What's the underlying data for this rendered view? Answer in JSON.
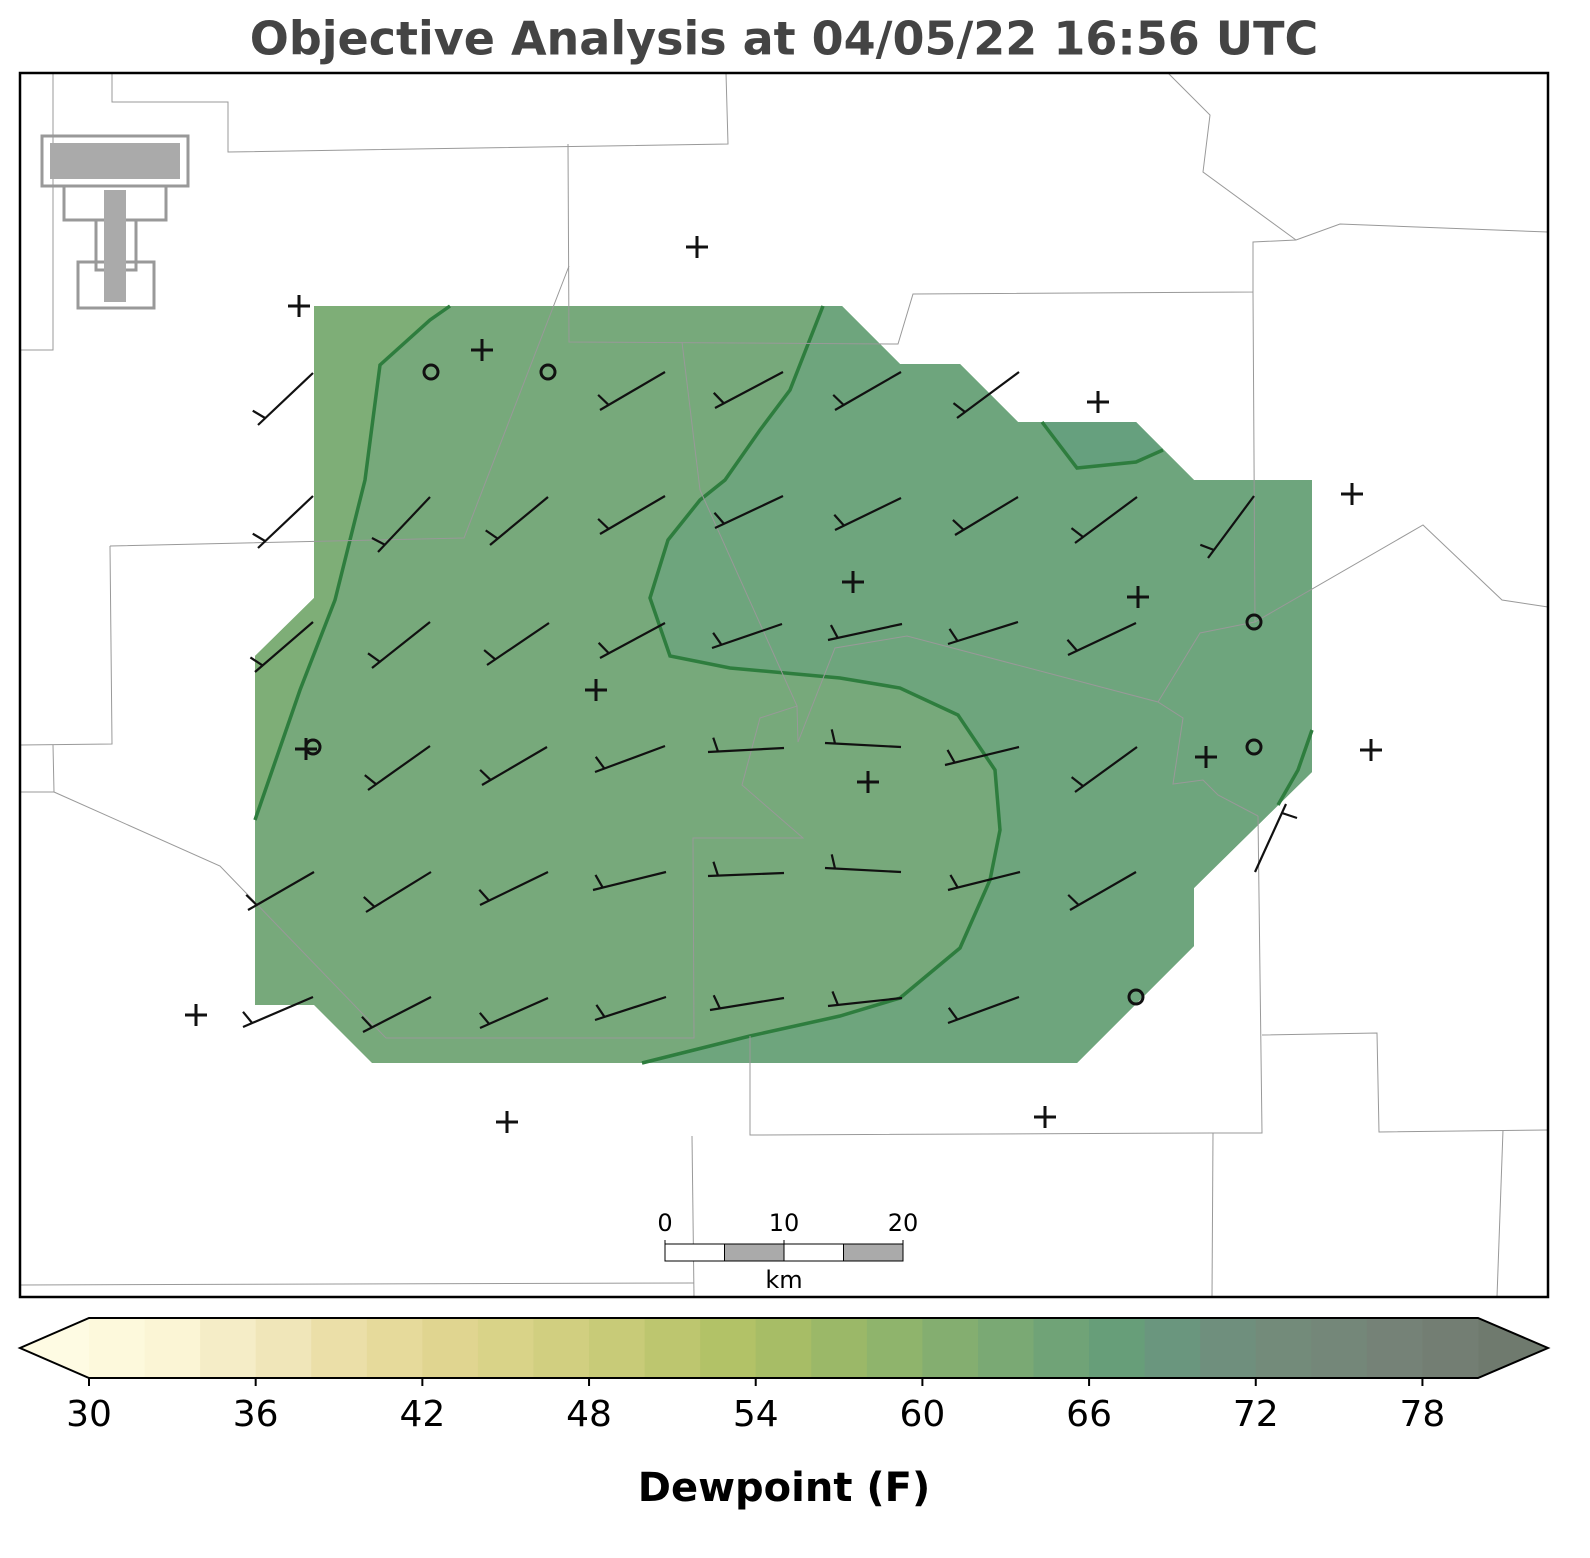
{
  "title": "Objective Analysis at 04/05/22 16:56 UTC",
  "scale_bar": {
    "ticks": [
      0,
      10,
      20
    ],
    "lim": [
      0,
      20
    ],
    "unit": "km"
  },
  "colorbar": {
    "label": "Dewpoint (F)",
    "lim": [
      30,
      80
    ],
    "ticks": [
      30,
      36,
      42,
      48,
      54,
      60,
      66,
      72,
      78
    ],
    "colors": [
      "#fdf9dc",
      "#fbf5d5",
      "#f5edc7",
      "#f0e6b9",
      "#ebdfa8",
      "#e6da9b",
      "#e0d590",
      "#d9d388",
      "#d1cf80",
      "#c8cb78",
      "#bdc66f",
      "#b2c267",
      "#a7bd66",
      "#9bb868",
      "#8fb46c",
      "#84ae70",
      "#7aa974",
      "#70a377",
      "#679e79",
      "#6a967e",
      "#6f8f7d",
      "#738b7a",
      "#748779",
      "#758277",
      "#737e73"
    ],
    "under_color": "#fefbe3",
    "over_color": "#6f7a6e"
  }
}
